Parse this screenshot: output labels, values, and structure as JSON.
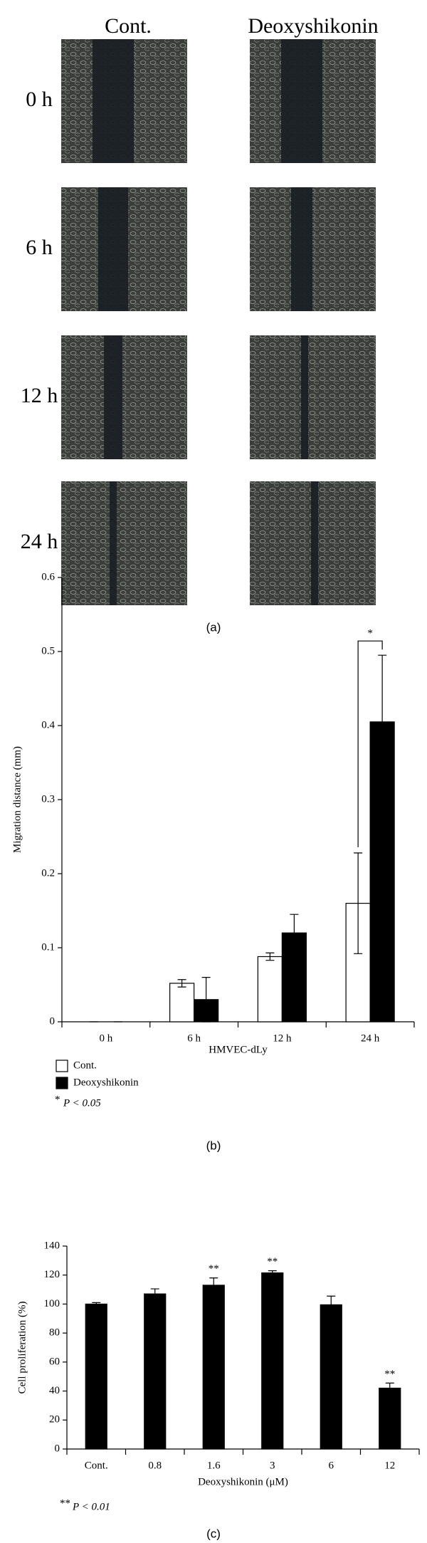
{
  "panel_a": {
    "columns": [
      "Cont.",
      "Deoxyshikonin"
    ],
    "rows": [
      "0 h",
      "6 h",
      "12 h",
      "24 h"
    ],
    "caption": "(a)"
  },
  "chart_data": [
    {
      "type": "bar",
      "caption": "(b)",
      "ylabel": "Migration distance (mm)",
      "xlabel": "HMVEC-dLy",
      "categories": [
        "0 h",
        "6 h",
        "12 h",
        "24 h"
      ],
      "series": [
        {
          "name": "Cont.",
          "color": "#ffffff",
          "values": [
            0,
            0.052,
            0.088,
            0.16
          ],
          "errors": [
            0,
            0.005,
            0.005,
            0.068
          ]
        },
        {
          "name": "Deoxyshikonin",
          "color": "#000000",
          "values": [
            0,
            0.03,
            0.12,
            0.405
          ],
          "errors": [
            0,
            0.03,
            0.025,
            0.09
          ]
        }
      ],
      "ylim": [
        0,
        0.6
      ],
      "yticks": [
        0,
        0.1,
        0.2,
        0.3,
        0.4,
        0.5,
        0.6
      ],
      "annotations": [
        {
          "category": 3,
          "text": "*"
        }
      ],
      "footnote": {
        "mark": "*",
        "text": "P < 0.05"
      }
    },
    {
      "type": "bar",
      "caption": "(c)",
      "ylabel": "Cell proliferation (%)",
      "xlabel": "Deoxyshikonin (μM)",
      "categories": [
        "Cont.",
        "0.8",
        "1.6",
        "3",
        "6",
        "12"
      ],
      "series": [
        {
          "color": "#000000",
          "values": [
            100,
            107,
            113,
            121.5,
            99.5,
            42
          ],
          "errors": [
            1,
            3.5,
            5,
            1.5,
            6,
            3.5
          ]
        }
      ],
      "ylim": [
        0,
        140
      ],
      "yticks": [
        0,
        20,
        40,
        60,
        80,
        100,
        120,
        140
      ],
      "annotations": [
        {
          "category": 2,
          "text": "**"
        },
        {
          "category": 3,
          "text": "**"
        },
        {
          "category": 5,
          "text": "**"
        }
      ],
      "footnote": {
        "mark": "**",
        "text": "P < 0.01"
      }
    }
  ]
}
